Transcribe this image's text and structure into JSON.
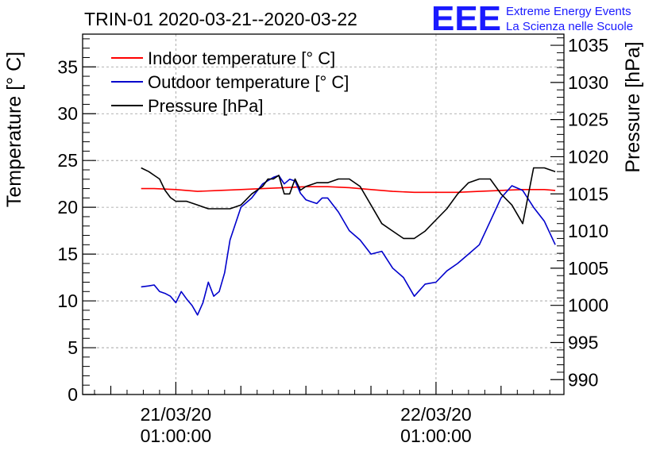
{
  "chart_data": {
    "type": "line",
    "title": "TRIN-01 2020-03-21--2020-03-22",
    "logo": {
      "text": "EEE",
      "line1": "Extreme Energy Events",
      "line2": "La Scienza nelle Scuole",
      "color": "#1a1aff"
    },
    "ylabel": "Temperature [° C]",
    "y2label": "Pressure [hPa]",
    "ylim": [
      0,
      38.5
    ],
    "y2lim": [
      988,
      1036.5
    ],
    "xlim": [
      -8.6,
      35.8
    ],
    "x_unit": "hours since 2020-03-21 01:00:00",
    "yticks": [
      0,
      5,
      10,
      15,
      20,
      25,
      30,
      35
    ],
    "y2ticks": [
      990,
      995,
      1000,
      1005,
      1010,
      1015,
      1020,
      1025,
      1030,
      1035
    ],
    "xticks": [
      {
        "x": 0,
        "line1": "21/03/20",
        "line2": "01:00:00"
      },
      {
        "x": 24,
        "line1": "22/03/20",
        "line2": "01:00:00"
      }
    ],
    "grid": true,
    "legend_position": "top-left",
    "series": [
      {
        "name": "Indoor temperature [° C]",
        "axis": "left",
        "color": "#ff0000",
        "x": [
          -3.2,
          -2,
          0,
          2,
          4,
          6,
          8,
          10,
          12,
          14,
          16,
          18,
          20,
          22,
          24,
          26,
          28,
          30,
          32,
          34,
          35
        ],
        "y": [
          22,
          22,
          21.9,
          21.7,
          21.8,
          21.9,
          22,
          22.1,
          22.2,
          22.2,
          22.1,
          21.9,
          21.7,
          21.6,
          21.6,
          21.6,
          21.7,
          21.8,
          21.9,
          21.9,
          21.8
        ]
      },
      {
        "name": "Outdoor temperature [° C]",
        "axis": "left",
        "color": "#0000cc",
        "x": [
          -3.2,
          -2.5,
          -2,
          -1.5,
          -1,
          -0.5,
          0,
          0.5,
          1,
          1.5,
          2,
          2.5,
          3,
          3.5,
          4,
          4.5,
          5,
          6,
          7,
          8,
          9,
          9.5,
          10,
          10.5,
          11,
          11.5,
          12,
          12.5,
          13,
          13.5,
          14,
          15,
          16,
          17,
          18,
          19,
          20,
          21,
          22,
          23,
          24,
          25,
          26,
          27,
          28,
          29,
          30,
          31,
          32,
          33,
          34,
          35
        ],
        "y": [
          11.5,
          11.6,
          11.7,
          11,
          10.8,
          10.5,
          9.8,
          11,
          10.2,
          9.5,
          8.5,
          9.8,
          12,
          10.5,
          11,
          13,
          16.5,
          20,
          21,
          22.5,
          23.2,
          23.4,
          22.5,
          23,
          22.8,
          21.5,
          20.8,
          20.6,
          20.4,
          21,
          21,
          19.5,
          17.5,
          16.5,
          15,
          15.3,
          13.5,
          12.5,
          10.5,
          11.8,
          12,
          13.2,
          14,
          15,
          16,
          18.5,
          21,
          22.3,
          21.8,
          20,
          18.5,
          16
        ]
      },
      {
        "name": "Pressure [hPa]",
        "axis": "right",
        "color": "#000000",
        "x": [
          -3.2,
          -2.5,
          -2,
          -1.5,
          -1,
          -0.5,
          0,
          1,
          2,
          3,
          4,
          5,
          6,
          7,
          8,
          8.5,
          9,
          9.5,
          10,
          10.5,
          11,
          11.5,
          12,
          13,
          14,
          15,
          16,
          17,
          18,
          19,
          20,
          21,
          22,
          23,
          24,
          25,
          26,
          27,
          28,
          29,
          30,
          31,
          32,
          33,
          34,
          35
        ],
        "y": [
          1018.5,
          1018,
          1017.5,
          1017,
          1015.5,
          1014.5,
          1014,
          1014,
          1013.5,
          1013,
          1013,
          1013,
          1013.5,
          1015,
          1016,
          1017,
          1017,
          1017.5,
          1015,
          1015,
          1017,
          1015.5,
          1016,
          1016.5,
          1016.5,
          1017,
          1017,
          1016,
          1013.5,
          1011,
          1010,
          1009,
          1009,
          1010,
          1011.5,
          1013,
          1015,
          1016.5,
          1017,
          1017,
          1015,
          1013.5,
          1011,
          1018.5,
          1018.5,
          1018
        ]
      }
    ]
  }
}
